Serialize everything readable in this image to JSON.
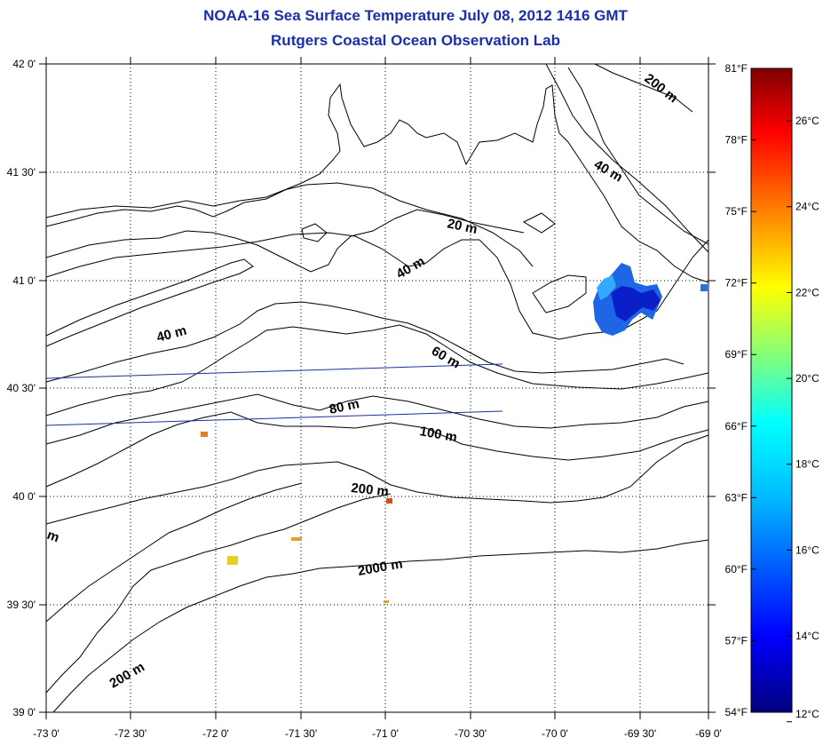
{
  "title": {
    "line1": "NOAA-16 Sea Surface Temperature July 08, 2012 1416 GMT",
    "line2": "Rutgers Coastal Ocean Observation Lab"
  },
  "axes": {
    "lon_ticks": [
      "-73 0'",
      "-72 30'",
      "-72 0'",
      "-71 30'",
      "-71 0'",
      "-70 30'",
      "-70 0'",
      "-69 30'",
      "-69 0'"
    ],
    "lat_ticks": [
      "42 0'",
      "41 30'",
      "41 0'",
      "40 30'",
      "40 0'",
      "39 30'",
      "39 0'"
    ],
    "lon_range": [
      -73,
      -69
    ],
    "lat_range": [
      39,
      42
    ],
    "grid": "dotted"
  },
  "contours": {
    "labels": [
      "200 m",
      "40 m",
      "20 m",
      "40 m",
      "40 m",
      "60 m",
      "80 m",
      "100 m",
      "200 m",
      "2000 m",
      "200 m",
      "m"
    ]
  },
  "colorbar": {
    "fahrenheit_labels": [
      "81°F",
      "78°F",
      "75°F",
      "72°F",
      "69°F",
      "66°F",
      "63°F",
      "60°F",
      "57°F",
      "54°F"
    ],
    "celsius_labels": [
      "26°C",
      "24°C",
      "22°C",
      "20°C",
      "18°C",
      "16°C",
      "14°C",
      "12°C"
    ],
    "range_f": [
      54,
      81
    ],
    "colormap": "jet",
    "colors": [
      "#00007f",
      "#0000ff",
      "#007fff",
      "#00ffff",
      "#7fff7f",
      "#ffff00",
      "#ff7f00",
      "#ff0000",
      "#7f0000"
    ]
  }
}
